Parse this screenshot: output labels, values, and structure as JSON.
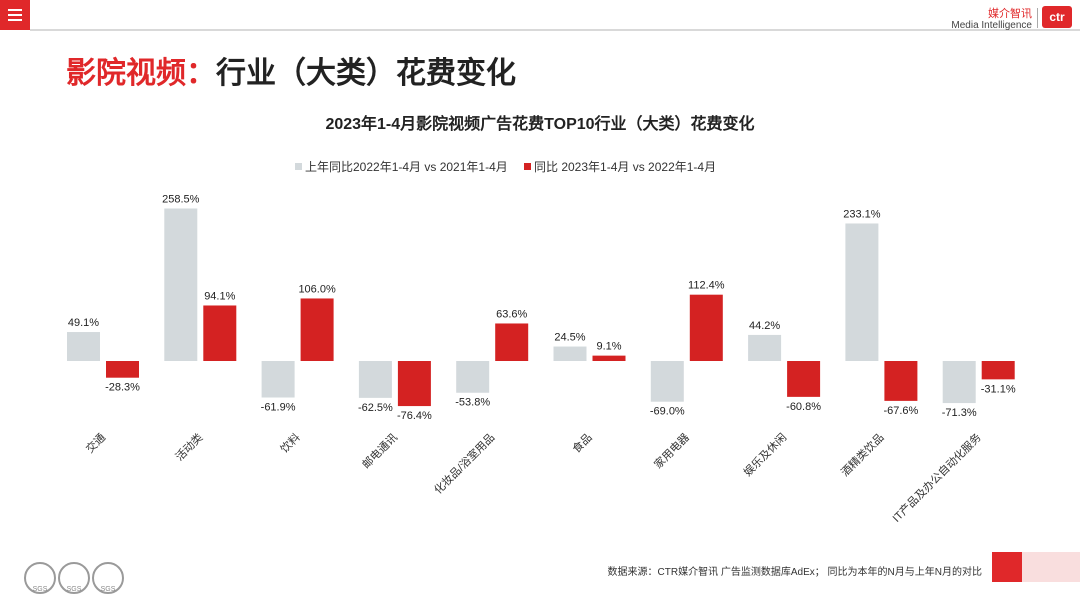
{
  "page": {
    "title_accent": "影院视频：",
    "title_rest": "行业（大类）花费变化"
  },
  "brand": {
    "name_cn": "媒介智讯",
    "name_en": "Media Intelligence",
    "logo": "ctr"
  },
  "chart_data": {
    "type": "bar",
    "title": "2023年1-4月影院视频广告花费TOP10行业（大类）花费变化",
    "categories": [
      "交通",
      "活动类",
      "饮料",
      "邮电通讯",
      "化妆品/浴室用品",
      "食品",
      "家用电器",
      "娱乐及休闲",
      "酒精类饮品",
      "IT产品及办公自动化服务"
    ],
    "series": [
      {
        "name": "上年同比2022年1-4月 vs 2021年1-4月",
        "color": "#d3d9dc",
        "values": [
          49.1,
          258.5,
          -61.9,
          -62.5,
          -53.8,
          24.5,
          -69.0,
          44.2,
          233.1,
          -71.3
        ]
      },
      {
        "name": "同比 2023年1-4月 vs 2022年1-4月",
        "color": "#d42222",
        "values": [
          -28.3,
          94.1,
          106.0,
          -76.4,
          63.6,
          9.1,
          112.4,
          -60.8,
          -67.6,
          -31.1
        ]
      }
    ],
    "value_suffix": "%",
    "legend_position": "top-center"
  },
  "footer": {
    "source": "数据来源：CTR媒介智讯 广告监测数据库AdEx；  同比为本年的N月与上年N月的对比",
    "badge_label": "SGS"
  }
}
